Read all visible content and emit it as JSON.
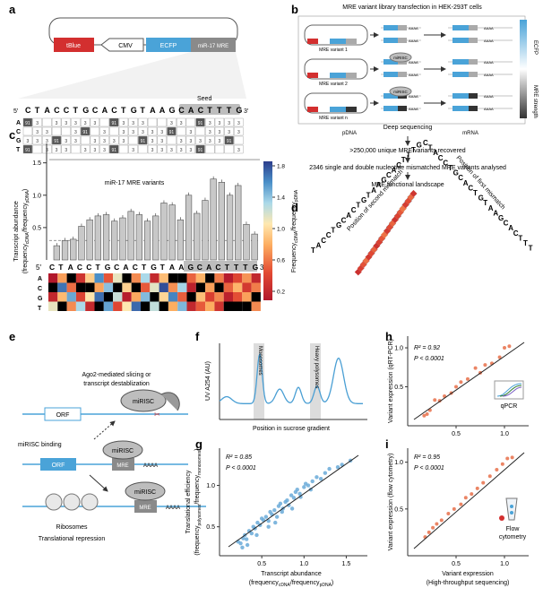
{
  "panels": {
    "a": {
      "label": "a",
      "plasmid": [
        "tBlue",
        "CMV",
        "ECFP",
        "miR-17 MRE"
      ],
      "seed_label": "Seed",
      "five": "5′",
      "three": "3′",
      "sequence": [
        "C",
        "T",
        "A",
        "C",
        "C",
        "T",
        "G",
        "C",
        "A",
        "C",
        "T",
        "G",
        "T",
        "A",
        "A",
        "G",
        "C",
        "A",
        "C",
        "T",
        "T",
        "T",
        "G"
      ],
      "seed_start": 15,
      "row_letters": [
        "A",
        "C",
        "G",
        "T"
      ],
      "cell_values": [
        "3",
        "3",
        "91"
      ]
    },
    "b": {
      "label": "b",
      "title": "MRE variant library transfection in HEK-293T cells",
      "variants": [
        "MRE variant 1",
        "MRE variant 2",
        "MRE variant n"
      ],
      "mirisc": "miRISC",
      "polyA": "AAAA",
      "deep_seq": "Deep sequencing",
      "pdna": "pDNA",
      "mrna": "mRNA",
      "bar_top": "ECFP",
      "bar_bottom": "MRE strength",
      "steps": [
        ">250,000 unique MRE variants recovered",
        "2346 single and double nucleotide mismatched MRE variants analysed",
        "MRE functional landscape"
      ]
    },
    "c": {
      "label": "c",
      "ylabel1": "Transcript abundance",
      "ylabel2": "(frequency",
      "ylabel_sub1": "cDNA",
      "ylabel_mid": "/frequency",
      "ylabel_sub2": "pDNA",
      "ylabel_end": ")",
      "yticks": [
        "1.5",
        "1.0",
        "0.5"
      ],
      "caption": "miR-17 MRE variants",
      "colorbar_label": "Frequency",
      "colorbar_sub1": "cDNA",
      "colorbar_mid": "/frequency",
      "colorbar_sub2": "pDNA",
      "colorbar_ticks": [
        "1.8",
        "1.4",
        "1.0",
        "0.6",
        "0.2"
      ],
      "bars": [
        0.22,
        0.3,
        0.32,
        0.52,
        0.62,
        0.68,
        0.7,
        0.6,
        0.65,
        0.75,
        0.7,
        0.6,
        0.68,
        0.88,
        0.85,
        0.62,
        1.0,
        0.72,
        0.92,
        1.25,
        1.2,
        1.0,
        1.15,
        0.55,
        0.4
      ],
      "ylim": [
        0,
        1.8
      ],
      "hline_top": 1.55,
      "hline_dash": 0.3
    },
    "d": {
      "label": "d",
      "axis_second": "Position of second mismatch",
      "axis_first": "Position of first mismatch",
      "sequence_left": [
        "T",
        "A",
        "C",
        "C",
        "T",
        "G",
        "C",
        "A",
        "C",
        "T",
        "G",
        "T",
        "A",
        "A",
        "G",
        "C",
        "A",
        "C",
        "T",
        "T",
        "T",
        "G"
      ],
      "sequence_right": [
        "C",
        "T",
        "A",
        "C",
        "C",
        "T",
        "G",
        "C",
        "A",
        "C",
        "T",
        "G",
        "T",
        "A",
        "A",
        "G",
        "C",
        "A",
        "C",
        "T",
        "T",
        "T"
      ]
    },
    "e": {
      "label": "e",
      "slicing": "Ago2-mediated slicing or transcript destablization",
      "binding": "miRISC binding",
      "orf": "ORF",
      "mirisc": "miRISC",
      "mre": "MRE",
      "polyA": "AAAA",
      "ribosomes": "Ribosomes",
      "repression": "Translational repression"
    },
    "f": {
      "label": "f",
      "ylabel": "UV A254 (AU)",
      "xlabel": "Position in sucrose gradient",
      "mono": "Monosomes",
      "heavy": "Heavy polysomes"
    },
    "g": {
      "label": "g",
      "r2": "R² = 0.85",
      "p": "P < 0.0001",
      "ylabel1": "Translational efficiency",
      "ylabel2": "(frequency",
      "ylabel_sub1": "polysomes",
      "ylabel_mid": "/frequency",
      "ylabel_sub2": "monosomes",
      "ylabel_end": ")",
      "xlabel1": "Transcript abundance",
      "xlabel2": "(frequency",
      "xlabel_sub1": "cDNA",
      "xlabel_mid": "/frequency",
      "xlabel_sub2": "pDNA",
      "xlabel_end": ")",
      "xticks": [
        "0.5",
        "1.0",
        "1.5"
      ],
      "yticks": [
        "1.0",
        "0.5"
      ],
      "points": [
        [
          0.25,
          0.3
        ],
        [
          0.28,
          0.36
        ],
        [
          0.3,
          0.4
        ],
        [
          0.32,
          0.35
        ],
        [
          0.35,
          0.45
        ],
        [
          0.38,
          0.42
        ],
        [
          0.4,
          0.5
        ],
        [
          0.42,
          0.48
        ],
        [
          0.45,
          0.55
        ],
        [
          0.48,
          0.52
        ],
        [
          0.5,
          0.6
        ],
        [
          0.52,
          0.58
        ],
        [
          0.55,
          0.62
        ],
        [
          0.58,
          0.57
        ],
        [
          0.6,
          0.68
        ],
        [
          0.62,
          0.65
        ],
        [
          0.65,
          0.7
        ],
        [
          0.68,
          0.62
        ],
        [
          0.7,
          0.75
        ],
        [
          0.72,
          0.78
        ],
        [
          0.75,
          0.72
        ],
        [
          0.78,
          0.8
        ],
        [
          0.8,
          0.82
        ],
        [
          0.82,
          0.76
        ],
        [
          0.85,
          0.88
        ],
        [
          0.88,
          0.85
        ],
        [
          0.9,
          0.92
        ],
        [
          0.92,
          0.95
        ],
        [
          0.95,
          0.9
        ],
        [
          1.0,
          0.98
        ],
        [
          1.02,
          1.02
        ],
        [
          1.05,
          1.0
        ],
        [
          1.1,
          1.05
        ],
        [
          1.15,
          1.1
        ],
        [
          1.2,
          1.08
        ],
        [
          1.25,
          1.15
        ],
        [
          1.3,
          1.2
        ],
        [
          1.4,
          1.22
        ],
        [
          1.45,
          1.25
        ],
        [
          1.55,
          1.3
        ],
        [
          0.33,
          0.28
        ],
        [
          0.44,
          0.4
        ],
        [
          0.58,
          0.5
        ],
        [
          0.66,
          0.55
        ],
        [
          0.74,
          0.68
        ],
        [
          0.86,
          0.72
        ],
        [
          0.96,
          0.86
        ],
        [
          1.08,
          0.95
        ],
        [
          0.22,
          0.32
        ],
        [
          0.27,
          0.25
        ]
      ]
    },
    "h": {
      "label": "h",
      "r2": "R² = 0.92",
      "p": "P < 0.0001",
      "ylabel": "Variant expression (qRT-PCR)",
      "inset": "qPCR",
      "xticks": [
        "0.5",
        "1.0"
      ],
      "yticks": [
        "1.0",
        "0.5"
      ],
      "points": [
        [
          0.17,
          0.13
        ],
        [
          0.2,
          0.15
        ],
        [
          0.23,
          0.2
        ],
        [
          0.28,
          0.33
        ],
        [
          0.33,
          0.32
        ],
        [
          0.38,
          0.38
        ],
        [
          0.45,
          0.42
        ],
        [
          0.5,
          0.5
        ],
        [
          0.55,
          0.56
        ],
        [
          0.62,
          0.6
        ],
        [
          0.7,
          0.74
        ],
        [
          0.75,
          0.68
        ],
        [
          0.8,
          0.78
        ],
        [
          0.87,
          0.8
        ],
        [
          0.95,
          0.88
        ],
        [
          1.0,
          1.0
        ],
        [
          1.05,
          1.02
        ]
      ]
    },
    "i": {
      "label": "i",
      "r2": "R² = 0.95",
      "p": "P < 0.0001",
      "ylabel": "Variant expression (flow cytometry)",
      "xlabel1": "Variant expression",
      "xlabel2": "(High-throughput sequencing)",
      "inset1": "Flow",
      "inset2": "cytometry",
      "xticks": [
        "0.5",
        "1.0"
      ],
      "yticks": [
        "1.0",
        "0.5"
      ],
      "points": [
        [
          0.18,
          0.2
        ],
        [
          0.22,
          0.25
        ],
        [
          0.26,
          0.3
        ],
        [
          0.3,
          0.34
        ],
        [
          0.35,
          0.38
        ],
        [
          0.42,
          0.45
        ],
        [
          0.48,
          0.5
        ],
        [
          0.55,
          0.55
        ],
        [
          0.6,
          0.62
        ],
        [
          0.66,
          0.66
        ],
        [
          0.72,
          0.72
        ],
        [
          0.78,
          0.78
        ],
        [
          0.85,
          0.85
        ],
        [
          0.92,
          0.92
        ],
        [
          0.98,
          0.98
        ],
        [
          1.03,
          1.04
        ],
        [
          1.08,
          1.05
        ]
      ]
    }
  },
  "colors": {
    "tblue": "#d32f2f",
    "ecfp": "#4aa3d8",
    "bar": "#c8c8c8",
    "trace": "#4a9fd4",
    "scatter_g": "#6aaad8",
    "scatter_hi": "#e8704a",
    "shade": "#dcdcdc"
  }
}
